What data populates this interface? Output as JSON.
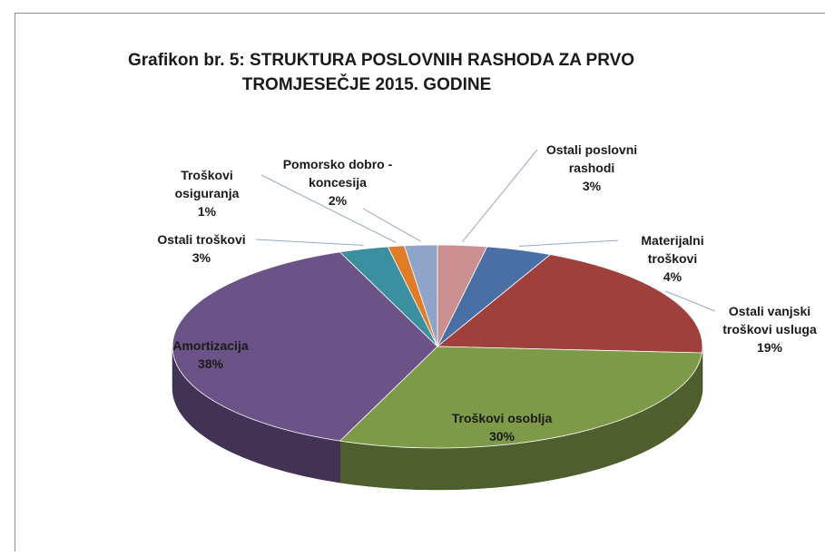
{
  "chart_data": {
    "type": "pie",
    "title": "Grafikon br. 5: STRUKTURA POSLOVNIH RASHODA ZA PRVO TROMJESEČJE 2015. GODINE",
    "categories": [
      "Ostali poslovni rashodi",
      "Materijalni troškovi",
      "Ostali vanjski troškovi usluga",
      "Troškovi osoblja",
      "Amortizacija",
      "Ostali troškovi",
      "Troškovi osiguranja",
      "Pomorsko dobro - koncesija"
    ],
    "values": [
      3,
      4,
      19,
      30,
      38,
      3,
      1,
      2
    ],
    "value_labels": [
      "3%",
      "4%",
      "19%",
      "30%",
      "38%",
      "3%",
      "1%",
      "2%"
    ],
    "colors": [
      "#c9908f",
      "#4a6fa5",
      "#a0403c",
      "#7d9a48",
      "#6b5387",
      "#3a8fa0",
      "#e07b28",
      "#8ea4c8"
    ]
  }
}
